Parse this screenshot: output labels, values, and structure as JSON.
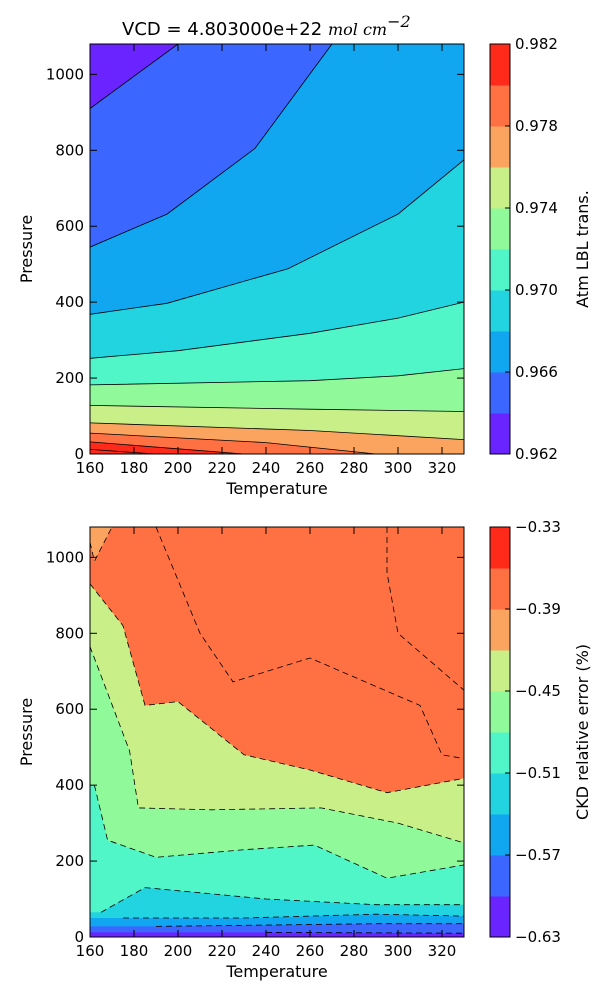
{
  "title": "VCD = 4.803000e+22",
  "title_math": "mol cm",
  "title_exp": "−2",
  "colors": [
    "#6a24ff",
    "#3b66ff",
    "#10a7f0",
    "#22d3e0",
    "#50f5c8",
    "#90fa9a",
    "#c9ef88",
    "#fba460",
    "#ff7043",
    "#ff2a1a"
  ],
  "chart_data": [
    {
      "type": "contour",
      "xlabel": "Temperature",
      "ylabel": "Pressure",
      "xlim": [
        160,
        330
      ],
      "ylim": [
        0,
        1080
      ],
      "x_ticks": [
        "160",
        "180",
        "200",
        "220",
        "240",
        "260",
        "280",
        "300",
        "320"
      ],
      "y_ticks": [
        "0",
        "200",
        "400",
        "600",
        "800",
        "1000"
      ],
      "colorbar_label": "Atm LBL trans.",
      "colorbar_ticks": [
        "0.962",
        "0.966",
        "0.970",
        "0.974",
        "0.978",
        "0.982"
      ],
      "levels": [
        0.962,
        0.964,
        0.966,
        0.968,
        0.97,
        0.972,
        0.974,
        0.976,
        0.978,
        0.98,
        0.982,
        0.984
      ],
      "contour_lines": [
        {
          "level": 0.964,
          "points": [
            [
              160,
              910
            ],
            [
              200,
              1080
            ]
          ]
        },
        {
          "level": 0.966,
          "points": [
            [
              160,
              545
            ],
            [
              195,
              632
            ],
            [
              235,
              805
            ],
            [
              270,
              1080
            ]
          ]
        },
        {
          "level": 0.968,
          "points": [
            [
              160,
              368
            ],
            [
              195,
              397
            ],
            [
              250,
              488
            ],
            [
              300,
              632
            ],
            [
              330,
              775
            ]
          ]
        },
        {
          "level": 0.97,
          "points": [
            [
              160,
              252
            ],
            [
              200,
              272
            ],
            [
              260,
              318
            ],
            [
              300,
              358
            ],
            [
              330,
              400
            ]
          ]
        },
        {
          "level": 0.972,
          "points": [
            [
              160,
              182
            ],
            [
              260,
              193
            ],
            [
              300,
              206
            ],
            [
              330,
              225
            ]
          ]
        },
        {
          "level": 0.974,
          "points": [
            [
              160,
              128
            ],
            [
              260,
              118
            ],
            [
              330,
              112
            ]
          ]
        },
        {
          "level": 0.976,
          "points": [
            [
              160,
              82
            ],
            [
              260,
              62
            ],
            [
              330,
              38
            ]
          ]
        },
        {
          "level": 0.978,
          "points": [
            [
              160,
              55
            ],
            [
              240,
              30
            ],
            [
              290,
              0
            ]
          ]
        },
        {
          "level": 0.98,
          "points": [
            [
              160,
              32
            ],
            [
              230,
              0
            ]
          ]
        },
        {
          "level": 0.982,
          "points": [
            [
              160,
              12
            ],
            [
              190,
              0
            ]
          ]
        }
      ]
    },
    {
      "type": "contour",
      "xlabel": "Temperature",
      "ylabel": "Pressure",
      "xlim": [
        160,
        330
      ],
      "ylim": [
        0,
        1080
      ],
      "x_ticks": [
        "160",
        "180",
        "200",
        "220",
        "240",
        "260",
        "280",
        "300",
        "320"
      ],
      "y_ticks": [
        "0",
        "200",
        "400",
        "600",
        "800",
        "1000"
      ],
      "colorbar_label": "CKD relative error (%)",
      "colorbar_ticks": [
        "−0.33",
        "−0.39",
        "−0.45",
        "−0.51",
        "−0.57",
        "−0.63"
      ],
      "levels": [
        -0.63,
        -0.6,
        -0.57,
        -0.54,
        -0.51,
        -0.48,
        -0.45,
        -0.42,
        -0.39,
        -0.36,
        -0.33
      ],
      "contour_lines": [
        {
          "level": -0.36,
          "points": [
            [
              295,
              1080
            ],
            [
              295,
              960
            ],
            [
              300,
              800
            ],
            [
              330,
              650
            ]
          ]
        },
        {
          "level": -0.39,
          "points": [
            [
              190,
              1080
            ],
            [
              210,
              800
            ],
            [
              225,
              672
            ],
            [
              260,
              735
            ],
            [
              310,
              610
            ],
            [
              320,
              480
            ],
            [
              330,
              470
            ]
          ]
        },
        {
          "level": -0.42,
          "points": [
            [
              160,
              1040
            ],
            [
              162,
              990
            ],
            [
              170,
              1080
            ]
          ]
        },
        {
          "level": -0.42,
          "points": [
            [
              160,
              930
            ],
            [
              175,
              820
            ],
            [
              185,
              610
            ],
            [
              200,
              620
            ],
            [
              230,
              480
            ],
            [
              260,
              440
            ],
            [
              295,
              380
            ],
            [
              330,
              418
            ]
          ]
        },
        {
          "level": -0.45,
          "points": [
            [
              160,
              765
            ],
            [
              178,
              490
            ],
            [
              182,
              340
            ],
            [
              215,
              335
            ],
            [
              265,
              340
            ],
            [
              300,
              300
            ],
            [
              330,
              248
            ]
          ]
        },
        {
          "level": -0.48,
          "points": [
            [
              162,
              400
            ],
            [
              168,
              255
            ],
            [
              190,
              210
            ],
            [
              230,
              230
            ],
            [
              262,
              242
            ],
            [
              295,
              155
            ],
            [
              330,
              190
            ]
          ]
        },
        {
          "level": -0.51,
          "points": [
            [
              165,
              65
            ],
            [
              185,
              130
            ],
            [
              240,
              100
            ],
            [
              290,
              85
            ],
            [
              330,
              85
            ]
          ]
        },
        {
          "level": -0.54,
          "points": [
            [
              175,
              50
            ],
            [
              230,
              50
            ],
            [
              290,
              60
            ],
            [
              330,
              55
            ]
          ]
        },
        {
          "level": -0.57,
          "points": [
            [
              190,
              28
            ],
            [
              290,
              35
            ],
            [
              330,
              35
            ]
          ]
        },
        {
          "level": -0.6,
          "points": [
            [
              240,
              12
            ],
            [
              330,
              10
            ]
          ]
        }
      ]
    }
  ]
}
